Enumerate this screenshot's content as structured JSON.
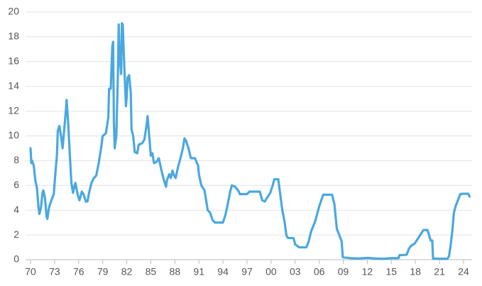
{
  "chart_data": {
    "type": "line",
    "color": "#4aa8e0",
    "grid": true,
    "xlim": [
      1970,
      2024.8
    ],
    "ylim": [
      0,
      20
    ],
    "yticks": [
      0,
      2,
      4,
      6,
      8,
      10,
      12,
      14,
      16,
      18,
      20
    ],
    "xticks": [
      {
        "value": 1970,
        "label": "70"
      },
      {
        "value": 1973,
        "label": "73"
      },
      {
        "value": 1976,
        "label": "76"
      },
      {
        "value": 1979,
        "label": "79"
      },
      {
        "value": 1982,
        "label": "82"
      },
      {
        "value": 1985,
        "label": "85"
      },
      {
        "value": 1988,
        "label": "88"
      },
      {
        "value": 1991,
        "label": "91"
      },
      {
        "value": 1994,
        "label": "94"
      },
      {
        "value": 1997,
        "label": "97"
      },
      {
        "value": 2000,
        "label": "00"
      },
      {
        "value": 2003,
        "label": "03"
      },
      {
        "value": 2006,
        "label": "06"
      },
      {
        "value": 2009,
        "label": "09"
      },
      {
        "value": 2012,
        "label": "12"
      },
      {
        "value": 2015,
        "label": "15"
      },
      {
        "value": 2018,
        "label": "18"
      },
      {
        "value": 2021,
        "label": "21"
      },
      {
        "value": 2024,
        "label": "24"
      }
    ],
    "x": [
      1970.0,
      1970.1,
      1970.2,
      1970.4,
      1970.6,
      1970.8,
      1971.0,
      1971.1,
      1971.3,
      1971.5,
      1971.6,
      1971.8,
      1972.0,
      1972.1,
      1972.3,
      1972.6,
      1972.9,
      1973.1,
      1973.3,
      1973.4,
      1973.6,
      1973.8,
      1974.0,
      1974.2,
      1974.4,
      1974.5,
      1974.7,
      1974.9,
      1975.1,
      1975.3,
      1975.5,
      1975.6,
      1975.9,
      1976.1,
      1976.4,
      1976.6,
      1976.9,
      1977.1,
      1977.3,
      1977.6,
      1977.9,
      1978.2,
      1978.5,
      1978.8,
      1979.0,
      1979.4,
      1979.7,
      1979.8,
      1980.0,
      1980.2,
      1980.3,
      1980.4,
      1980.5,
      1980.7,
      1980.9,
      1981.0,
      1981.1,
      1981.3,
      1981.4,
      1981.5,
      1981.7,
      1981.9,
      1982.0,
      1982.1,
      1982.3,
      1982.5,
      1982.6,
      1982.8,
      1983.0,
      1983.3,
      1983.5,
      1983.9,
      1984.2,
      1984.5,
      1984.6,
      1984.8,
      1985.0,
      1985.2,
      1985.4,
      1985.7,
      1986.0,
      1986.3,
      1986.6,
      1986.9,
      1987.0,
      1987.3,
      1987.5,
      1987.7,
      1987.9,
      1988.1,
      1988.4,
      1988.7,
      1989.0,
      1989.2,
      1989.4,
      1989.7,
      1990.0,
      1990.5,
      1990.9,
      1991.0,
      1991.3,
      1991.7,
      1991.9,
      1992.1,
      1992.4,
      1992.7,
      1993.0,
      1993.5,
      1994.0,
      1994.3,
      1994.6,
      1994.9,
      1995.1,
      1995.5,
      1995.9,
      1996.1,
      1996.6,
      1997.0,
      1997.3,
      1998.0,
      1998.6,
      1998.9,
      1999.2,
      1999.5,
      1999.9,
      2000.2,
      2000.4,
      2000.9,
      2001.1,
      2001.4,
      2001.7,
      2001.9,
      2002.1,
      2002.8,
      2003.0,
      2003.5,
      2004.4,
      2004.7,
      2005.0,
      2005.5,
      2006.0,
      2006.5,
      2007.6,
      2007.9,
      2008.2,
      2008.5,
      2008.8,
      2008.95,
      2009.5,
      2010.0,
      2011.0,
      2012.0,
      2013.0,
      2014.0,
      2015.0,
      2015.9,
      2016.0,
      2016.9,
      2017.2,
      2017.5,
      2017.9,
      2018.2,
      2018.5,
      2018.8,
      2019.0,
      2019.5,
      2019.7,
      2019.9,
      2020.1,
      2020.2,
      2021.0,
      2022.0,
      2022.2,
      2022.4,
      2022.6,
      2022.8,
      2023.0,
      2023.3,
      2023.6,
      2024.0,
      2024.6,
      2024.75
    ],
    "values": [
      9.0,
      7.8,
      8.0,
      7.6,
      6.4,
      5.8,
      4.2,
      3.7,
      4.2,
      5.4,
      5.6,
      5.0,
      3.5,
      3.3,
      4.2,
      4.8,
      5.3,
      7.0,
      8.5,
      10.4,
      10.8,
      10.0,
      9.0,
      10.5,
      12.0,
      12.9,
      11.0,
      8.5,
      6.2,
      5.4,
      6.0,
      6.2,
      5.2,
      4.8,
      5.5,
      5.3,
      4.7,
      4.7,
      5.4,
      6.2,
      6.6,
      6.8,
      7.8,
      9.0,
      10.0,
      10.2,
      11.5,
      13.8,
      13.8,
      17.2,
      17.6,
      11.0,
      9.0,
      10.0,
      15.0,
      19.0,
      16.5,
      15.0,
      19.1,
      19.0,
      15.5,
      12.4,
      13.2,
      14.7,
      14.9,
      13.5,
      10.5,
      10.0,
      8.7,
      8.6,
      9.3,
      9.4,
      9.7,
      11.0,
      11.6,
      10.0,
      8.4,
      8.6,
      7.8,
      7.9,
      8.2,
      7.3,
      6.5,
      5.9,
      6.4,
      6.9,
      6.6,
      7.2,
      6.8,
      6.6,
      7.5,
      8.2,
      9.0,
      9.8,
      9.6,
      9.0,
      8.2,
      8.2,
      7.6,
      6.9,
      6.0,
      5.6,
      4.8,
      4.0,
      3.8,
      3.2,
      3.0,
      3.0,
      3.0,
      3.6,
      4.5,
      5.5,
      6.0,
      5.9,
      5.6,
      5.3,
      5.3,
      5.3,
      5.5,
      5.5,
      5.5,
      4.8,
      4.7,
      5.0,
      5.4,
      6.0,
      6.5,
      6.5,
      5.5,
      4.0,
      3.0,
      2.0,
      1.75,
      1.75,
      1.25,
      1.0,
      1.0,
      1.5,
      2.3,
      3.1,
      4.3,
      5.25,
      5.25,
      4.5,
      2.5,
      2.0,
      1.5,
      0.2,
      0.16,
      0.12,
      0.1,
      0.15,
      0.1,
      0.08,
      0.13,
      0.13,
      0.37,
      0.4,
      0.9,
      1.15,
      1.3,
      1.6,
      1.9,
      2.2,
      2.4,
      2.4,
      2.0,
      1.55,
      1.55,
      0.1,
      0.08,
      0.08,
      0.3,
      1.2,
      2.3,
      3.8,
      4.3,
      4.8,
      5.3,
      5.33,
      5.33,
      5.1
    ]
  }
}
